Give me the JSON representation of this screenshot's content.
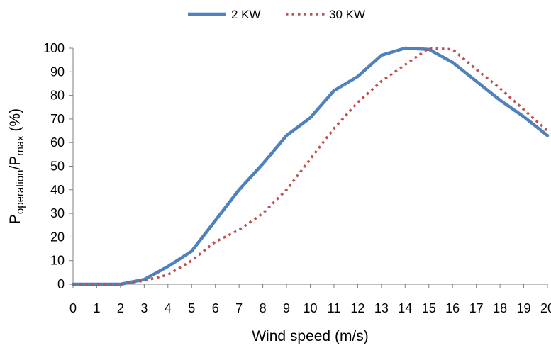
{
  "chart_data": {
    "type": "line",
    "xlabel": "Wind speed (m/s)",
    "ylabel_main_1": "P",
    "ylabel_sub_1": "operation",
    "ylabel_main_2": "/P",
    "ylabel_sub_2": "max",
    "ylabel_suffix": " (%)",
    "xlim": [
      0,
      20
    ],
    "ylim": [
      0,
      100
    ],
    "x_ticks": [
      0,
      1,
      2,
      3,
      4,
      5,
      6,
      7,
      8,
      9,
      10,
      11,
      12,
      13,
      14,
      15,
      16,
      17,
      18,
      19,
      20
    ],
    "y_ticks": [
      0,
      10,
      20,
      30,
      40,
      50,
      60,
      70,
      80,
      90,
      100
    ],
    "grid": false,
    "legend_position": "top-center",
    "x": [
      0,
      1,
      2,
      3,
      4,
      5,
      6,
      7,
      8,
      9,
      10,
      11,
      12,
      13,
      14,
      15,
      16,
      17,
      18,
      19,
      20
    ],
    "series": [
      {
        "name": "2 KW",
        "style": "solid",
        "color": "#4f81bd",
        "values": [
          0,
          0,
          0,
          2,
          7.5,
          14,
          27,
          40,
          51,
          63,
          70.5,
          82,
          88,
          97,
          100,
          99.5,
          94,
          86,
          78,
          71,
          63
        ]
      },
      {
        "name": "30 KW",
        "style": "dotted",
        "color": "#c0504d",
        "values": [
          0,
          0,
          0,
          1.5,
          4,
          10,
          18,
          23,
          30,
          40,
          53,
          66,
          77,
          86,
          93,
          100,
          99.5,
          91,
          83,
          74,
          65
        ]
      }
    ]
  }
}
